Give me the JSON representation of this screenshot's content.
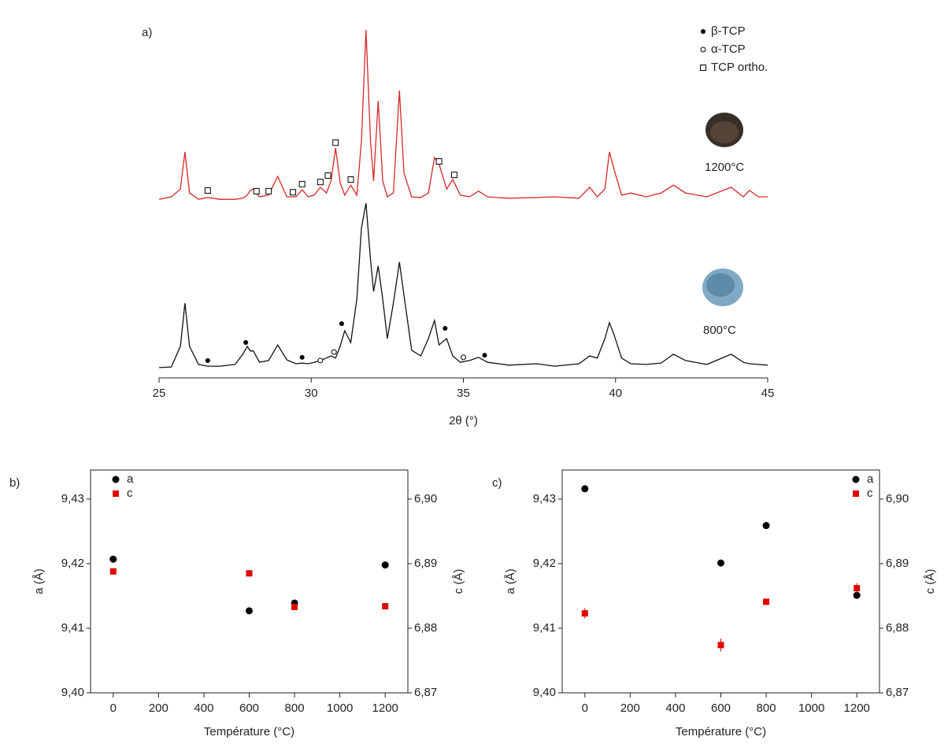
{
  "chart_data": [
    {
      "type": "line",
      "label": "a)",
      "xlabel": "2θ (°)",
      "xlim": [
        25,
        45
      ],
      "xticks": [
        25,
        30,
        35,
        40,
        45
      ],
      "ylim": [
        0,
        100
      ],
      "x": [
        25,
        25.4,
        25.7,
        25.85,
        26.0,
        26.3,
        26.6,
        27.0,
        27.5,
        27.75,
        27.9,
        28.0,
        28.1,
        28.3,
        28.6,
        28.9,
        29.2,
        29.5,
        29.7,
        29.9,
        30.1,
        30.3,
        30.5,
        30.65,
        30.8,
        30.95,
        31.1,
        31.3,
        31.5,
        31.65,
        31.8,
        31.95,
        32.05,
        32.2,
        32.35,
        32.5,
        32.7,
        32.9,
        33.05,
        33.3,
        33.6,
        33.85,
        34.05,
        34.2,
        34.45,
        34.65,
        34.9,
        35.2,
        35.5,
        35.8,
        36.5,
        37.4,
        38.0,
        38.8,
        39.15,
        39.4,
        39.65,
        39.8,
        39.95,
        40.2,
        40.5,
        41.0,
        41.5,
        41.9,
        42.3,
        43.0,
        43.8,
        44.2,
        44.4,
        44.7,
        45
      ],
      "series": [
        {
          "color": "#d62728",
          "values": [
            50.4,
            51.1,
            53.3,
            63.8,
            52.2,
            50.4,
            50.9,
            50.4,
            50.4,
            50.7,
            51.6,
            52.9,
            53.3,
            51.1,
            51.6,
            56.9,
            51.1,
            51.1,
            53.1,
            51.1,
            51.6,
            53.8,
            52.2,
            55.6,
            64.9,
            55.1,
            51.6,
            54.4,
            51.6,
            66.7,
            98.2,
            66.7,
            55.6,
            78.2,
            55.6,
            51.1,
            52.2,
            81.1,
            57.8,
            51.1,
            50.9,
            52.2,
            62.2,
            60.4,
            53.3,
            56.0,
            51.6,
            51.1,
            52.7,
            51.1,
            50.7,
            50.9,
            51.1,
            50.7,
            53.8,
            51.1,
            53.3,
            63.8,
            58.9,
            51.6,
            52.2,
            51.1,
            52.2,
            54.4,
            52.2,
            51.1,
            53.8,
            51.1,
            52.9,
            51.1,
            51.1
          ]
        },
        {
          "color": "#111111",
          "values": [
            2.9,
            3.1,
            8.9,
            21.1,
            8.9,
            3.8,
            3.3,
            3.3,
            3.8,
            6.7,
            8.9,
            7.6,
            7.6,
            4.4,
            4.9,
            9.3,
            5.1,
            4.0,
            4.2,
            4.0,
            4.4,
            4.9,
            5.6,
            6.2,
            5.6,
            8.9,
            13.3,
            10.0,
            22.2,
            42.2,
            49.3,
            33.3,
            24.4,
            31.6,
            22.2,
            11.1,
            21.1,
            32.7,
            23.3,
            7.8,
            6.2,
            11.1,
            16.2,
            9.3,
            11.1,
            6.2,
            4.4,
            4.9,
            5.8,
            4.4,
            3.6,
            4.0,
            3.3,
            4.0,
            6.2,
            5.6,
            11.1,
            15.6,
            12.2,
            5.6,
            4.0,
            3.8,
            4.2,
            6.7,
            4.9,
            3.8,
            6.7,
            4.4,
            4.0,
            3.8,
            3.6
          ]
        }
      ],
      "markers": [
        {
          "name": "β-TCP",
          "marker": "filled-circle",
          "x": [
            26.6,
            27.85,
            29.7,
            31.0,
            34.4,
            35.7
          ],
          "values": [
            4.9,
            10.0,
            5.8,
            15.3,
            14.0,
            6.4
          ]
        },
        {
          "name": "α-TCP",
          "marker": "open-circle",
          "x": [
            30.3,
            30.75,
            35.0
          ],
          "values": [
            4.9,
            7.3,
            5.8
          ]
        },
        {
          "name": "TCP ortho.",
          "marker": "open-square",
          "x": [
            26.6,
            28.2,
            28.6,
            29.4,
            29.7,
            30.3,
            30.55,
            30.8,
            31.3,
            34.2,
            34.7
          ],
          "values": [
            52.9,
            52.7,
            52.7,
            52.4,
            54.7,
            55.3,
            57.1,
            66.4,
            56.0,
            61.1,
            57.3
          ]
        }
      ],
      "annotations": [
        "1200°C",
        "800°C"
      ]
    },
    {
      "type": "scatter",
      "label": "b)",
      "xlabel": "Température (°C)",
      "ylabel": "a (Å)",
      "y2label": "c (Å)",
      "xlim": [
        -100,
        1300
      ],
      "xticks": [
        0,
        200,
        400,
        600,
        800,
        1000,
        1200
      ],
      "ylim": [
        9.4,
        9.4345
      ],
      "yticks": [
        {
          "value": 9.4,
          "label": "9,40"
        },
        {
          "value": 9.41,
          "label": "9,41"
        },
        {
          "value": 9.42,
          "label": "9,42"
        },
        {
          "value": 9.43,
          "label": "9,43"
        }
      ],
      "y2lim": [
        6.87,
        6.9045
      ],
      "y2ticks": [
        {
          "value": 6.87,
          "label": "6,87"
        },
        {
          "value": 6.88,
          "label": "6,88"
        },
        {
          "value": 6.89,
          "label": "6,89"
        },
        {
          "value": 6.9,
          "label": "6,90"
        }
      ],
      "legend": "upper left",
      "x": [
        0,
        600,
        800,
        1200
      ],
      "series": [
        {
          "name": "a",
          "color": "#000000",
          "marker": "circle",
          "values": [
            9.4207,
            9.4127,
            9.4139,
            9.4198
          ],
          "errors": [
            0.0002,
            0.0002,
            0.0002,
            0.0002
          ]
        },
        {
          "name": "c",
          "color": "#e00000",
          "marker": "square",
          "axis": "y2",
          "values": [
            6.8888,
            6.8885,
            6.8833,
            6.8834
          ],
          "errors": [
            0.0002,
            0.0002,
            0.0002,
            0.0002
          ]
        }
      ]
    },
    {
      "type": "scatter",
      "label": "c)",
      "xlabel": "Température (°C)",
      "ylabel": "a (Å)",
      "y2label": "c (Å)",
      "xlim": [
        -100,
        1300
      ],
      "xticks": [
        0,
        200,
        400,
        600,
        800,
        1000,
        1200
      ],
      "ylim": [
        9.4,
        9.4345
      ],
      "yticks": [
        {
          "value": 9.4,
          "label": "9,40"
        },
        {
          "value": 9.41,
          "label": "9,41"
        },
        {
          "value": 9.42,
          "label": "9,42"
        },
        {
          "value": 9.43,
          "label": "9,43"
        }
      ],
      "y2lim": [
        6.87,
        6.9045
      ],
      "y2ticks": [
        {
          "value": 6.87,
          "label": "6,87"
        },
        {
          "value": 6.88,
          "label": "6,88"
        },
        {
          "value": 6.89,
          "label": "6,89"
        },
        {
          "value": 6.9,
          "label": "6,90"
        }
      ],
      "legend": "upper right",
      "x": [
        0,
        600,
        800,
        1200
      ],
      "series": [
        {
          "name": "a",
          "color": "#000000",
          "marker": "circle",
          "values": [
            9.4316,
            9.4201,
            9.4259,
            9.4151
          ],
          "errors": [
            0.0003,
            0.0003,
            0.0002,
            0.0002
          ]
        },
        {
          "name": "c",
          "color": "#e00000",
          "marker": "square",
          "axis": "y2",
          "values": [
            6.8823,
            6.8774,
            6.8841,
            6.8862
          ],
          "errors": [
            0.0008,
            0.001,
            0.0002,
            0.0008
          ]
        }
      ]
    }
  ]
}
